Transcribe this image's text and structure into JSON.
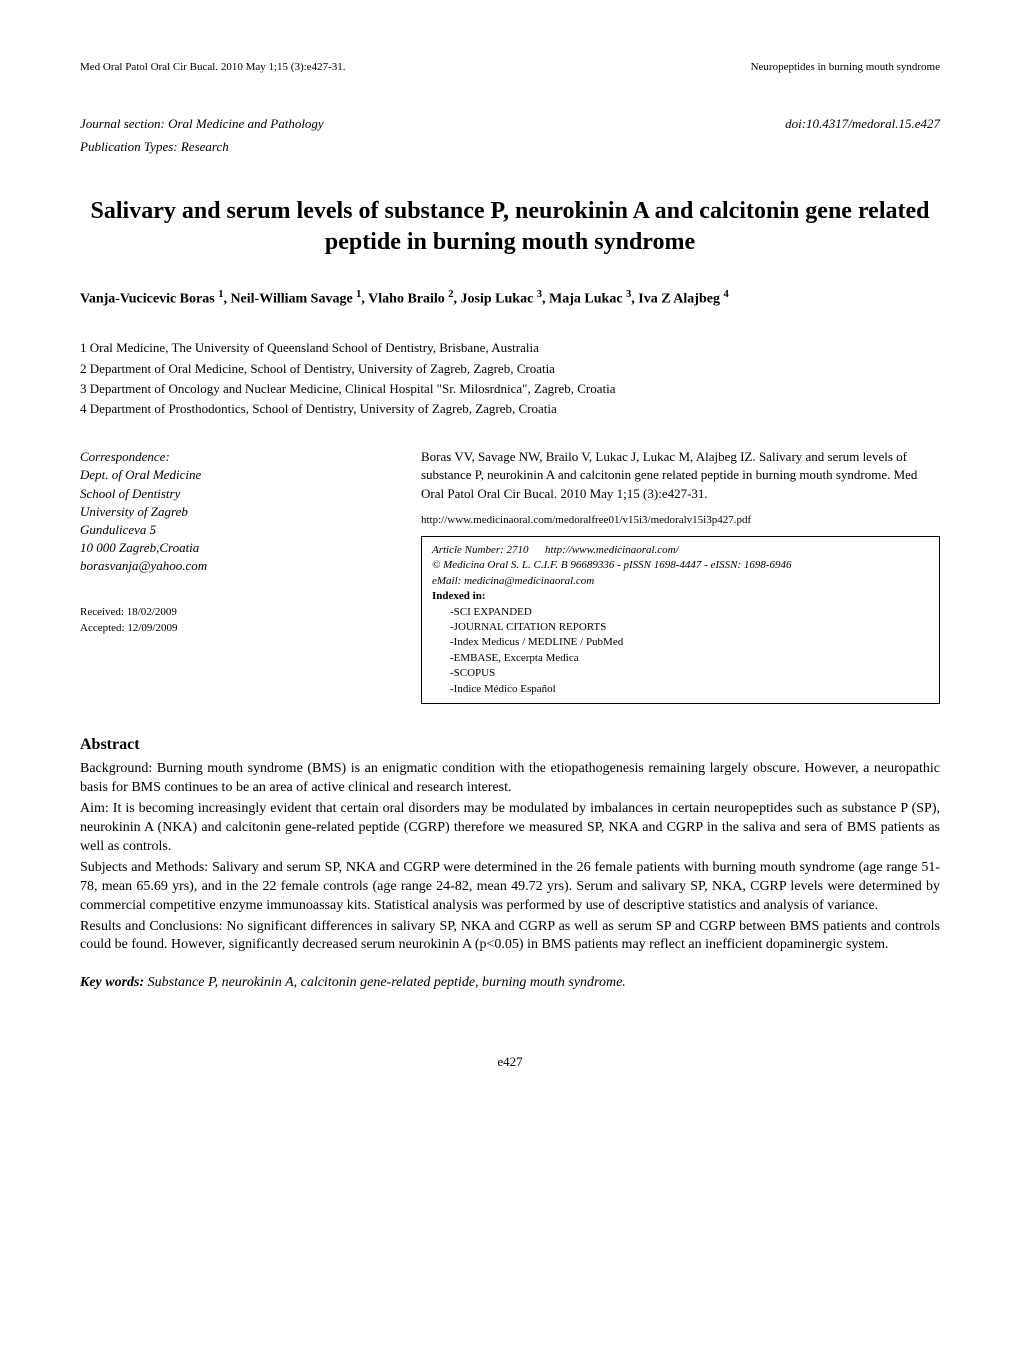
{
  "header": {
    "running_left": "Med Oral Patol Oral Cir Bucal. 2010 May 1;15 (3):e427-31.",
    "running_right": "Neuropeptides in burning mouth syndrome"
  },
  "meta": {
    "journal_section": "Journal section: Oral Medicine and Pathology",
    "publication_types": "Publication Types: Research",
    "doi": "doi:10.4317/medoral.15.e427"
  },
  "title": "Salivary and serum levels of substance P, neurokinin A and calcitonin gene related peptide in burning mouth syndrome",
  "authors_html": "Vanja-Vucicevic Boras <sup>1</sup>, Neil-William Savage <sup>1</sup>,  Vlaho Brailo <sup>2</sup>,  Josip Lukac <sup>3</sup>,  Maja Lukac <sup>3</sup>,  Iva Z Alajbeg <sup>4</sup>",
  "affiliations": [
    "1 Oral Medicine, The University of Queensland School of Dentistry, Brisbane, Australia",
    "2 Department of Oral Medicine, School of Dentistry, University of Zagreb, Zagreb, Croatia",
    "3 Department of Oncology and Nuclear Medicine, Clinical Hospital \"Sr. Milosrdnica\", Zagreb, Croatia",
    "4 Department of Prosthodontics, School of Dentistry, University of Zagreb, Zagreb, Croatia"
  ],
  "correspondence": {
    "heading": "Correspondence:",
    "lines": [
      "Dept. of Oral Medicine",
      "School of Dentistry",
      "University of Zagreb",
      "Gunduliceva 5",
      "10 000 Zagreb,Croatia",
      "borasvanja@yahoo.com"
    ]
  },
  "dates": {
    "received": "Received: 18/02/2009",
    "accepted": "Accepted: 12/09/2009"
  },
  "citation": {
    "text": "Boras VV, Savage NW, Brailo V, Lukac J, Lukac M, Alajbeg IZ. Salivary and serum levels of substance P, neurokinin A and calcitonin gene related peptide in burning mouth syndrome. Med Oral Patol Oral Cir Bucal. 2010 May 1;15 (3):e427-31.",
    "url": "http://www.medicinaoral.com/medoralfree01/v15i3/medoralv15i3p427.pdf"
  },
  "index_box": {
    "article_number": "Article Number: 2710",
    "article_url": "http://www.medicinaoral.com/",
    "copyright": "© Medicina Oral S. L. C.I.F. B 96689336 - pISSN 1698-4447 - eISSN: 1698-6946",
    "email": "eMail:  medicina@medicinaoral.com",
    "indexed_label": "Indexed in:",
    "entries": [
      "-SCI EXPANDED",
      "-JOURNAL CITATION REPORTS",
      "-Index Medicus / MEDLINE  /  PubMed",
      "-EMBASE, Excerpta Medica",
      "-SCOPUS",
      "-Indice Médico Español"
    ]
  },
  "abstract": {
    "heading": "Abstract",
    "paragraphs": [
      "Background: Burning mouth syndrome (BMS) is an enigmatic condition with the etiopathogenesis remaining largely obscure. However, a neuropathic basis for BMS continues to be an area of active clinical and research interest.",
      "Aim: It is becoming increasingly evident that certain oral disorders may be modulated by imbalances in certain neuropeptides such as substance P (SP), neurokinin A (NKA) and calcitonin gene-related peptide (CGRP) therefore we measured SP, NKA and CGRP in the saliva and sera of BMS patients as well as controls.",
      "Subjects and Methods: Salivary and serum SP, NKA and CGRP were determined in the 26 female patients with burning mouth syndrome (age range 51-78, mean 65.69 yrs), and in the 22 female controls (age range 24-82, mean 49.72 yrs). Serum and salivary SP, NKA, CGRP levels were determined by commercial competitive enzyme immunoassay kits. Statistical analysis was performed by use of descriptive statistics and analysis of variance.",
      "Results and Conclusions: No significant differences in salivary SP, NKA and CGRP as well as serum SP and CGRP between BMS patients and controls could be found. However, significantly decreased serum neurokinin A (p<0.05) in BMS patients may reflect an inefficient dopaminergic system."
    ]
  },
  "keywords": {
    "label": "Key words:",
    "text": " Substance P, neurokinin A, calcitonin gene-related peptide, burning mouth syndrome."
  },
  "page_number": "e427",
  "styling": {
    "background_color": "#ffffff",
    "text_color": "#000000",
    "title_fontsize_pt": 18,
    "body_fontsize_pt": 11,
    "small_fontsize_pt": 9,
    "font_family": "Times New Roman"
  }
}
